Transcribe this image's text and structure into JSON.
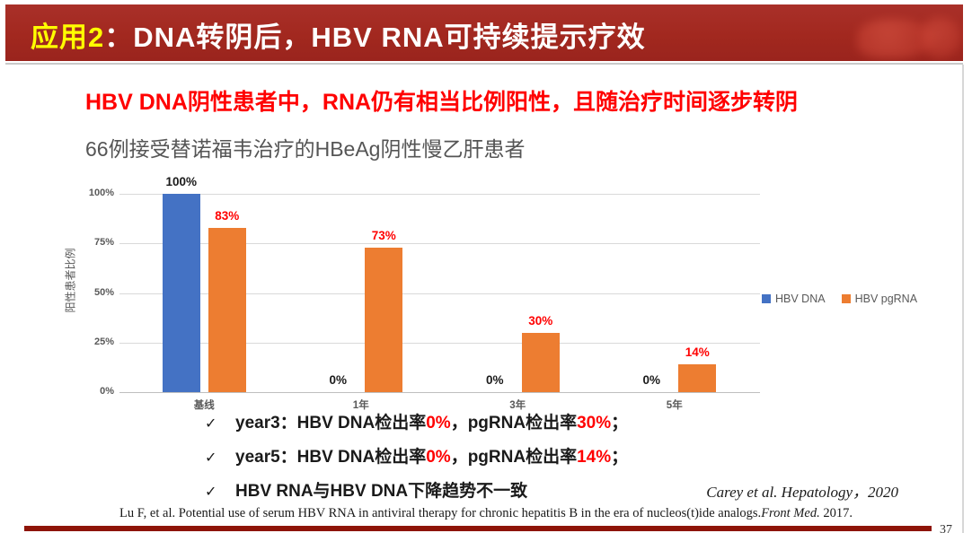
{
  "header": {
    "tag_label": "应用2",
    "separator": "：",
    "title_rest": "DNA转阴后，HBV RNA可持续提示疗效",
    "tag_color": "#ffff00",
    "title_color": "#ffffff",
    "bar_color": "#a2281f"
  },
  "headline": "HBV DNA阴性患者中，RNA仍有相当比例阳性，且随治疗时间逐步转阴",
  "chart_title": "66例接受替诺福韦治疗的HBeAg阴性慢乙肝患者",
  "chart_data": {
    "type": "bar",
    "categories": [
      "基线",
      "1年",
      "3年",
      "5年"
    ],
    "series": [
      {
        "name": "HBV DNA",
        "color": "#4472C4",
        "values": [
          100,
          0,
          0,
          0
        ],
        "data_labels": [
          "100%",
          "0%",
          "0%",
          "0%"
        ],
        "label_color": "#1a1a1a"
      },
      {
        "name": "HBV pgRNA",
        "color": "#ED7D31",
        "values": [
          83,
          73,
          30,
          14
        ],
        "data_labels": [
          "83%",
          "73%",
          "30%",
          "14%"
        ],
        "label_color": "#ff0000"
      }
    ],
    "ylabel": "阳性患者比例",
    "xlabel": "",
    "yticks": [
      0,
      25,
      50,
      75,
      100
    ],
    "ytick_labels": [
      "0%",
      "25%",
      "50%",
      "75%",
      "100%"
    ],
    "ylim": [
      0,
      100
    ],
    "grid": true,
    "legend_position": "right"
  },
  "bullets": [
    {
      "check": "✓",
      "segments": [
        {
          "t": "year3：HBV DNA检出率",
          "red": false
        },
        {
          "t": "0%",
          "red": true
        },
        {
          "t": "，pgRNA检出率",
          "red": false
        },
        {
          "t": "30%",
          "red": true
        },
        {
          "t": "；",
          "red": false
        }
      ]
    },
    {
      "check": "✓",
      "segments": [
        {
          "t": "year5：HBV DNA检出率",
          "red": false
        },
        {
          "t": "0%",
          "red": true
        },
        {
          "t": "，pgRNA检出率",
          "red": false
        },
        {
          "t": "14%",
          "red": true
        },
        {
          "t": "；",
          "red": false
        }
      ]
    },
    {
      "check": "✓",
      "segments": [
        {
          "t": "HBV RNA与HBV DNA下降趋势不一致",
          "red": false
        }
      ]
    }
  ],
  "citation": "Carey et al.  Hepatology，2020",
  "footer_reference": {
    "segments": [
      {
        "t": "Lu F, et al. Potential use of serum HBV RNA in antiviral therapy for chronic hepatitis B in the era of nucleos(t)ide analogs.",
        "italic": false
      },
      {
        "t": "Front Med.",
        "italic": true
      },
      {
        "t": " 2017.",
        "italic": false
      }
    ]
  },
  "page_number": "37"
}
